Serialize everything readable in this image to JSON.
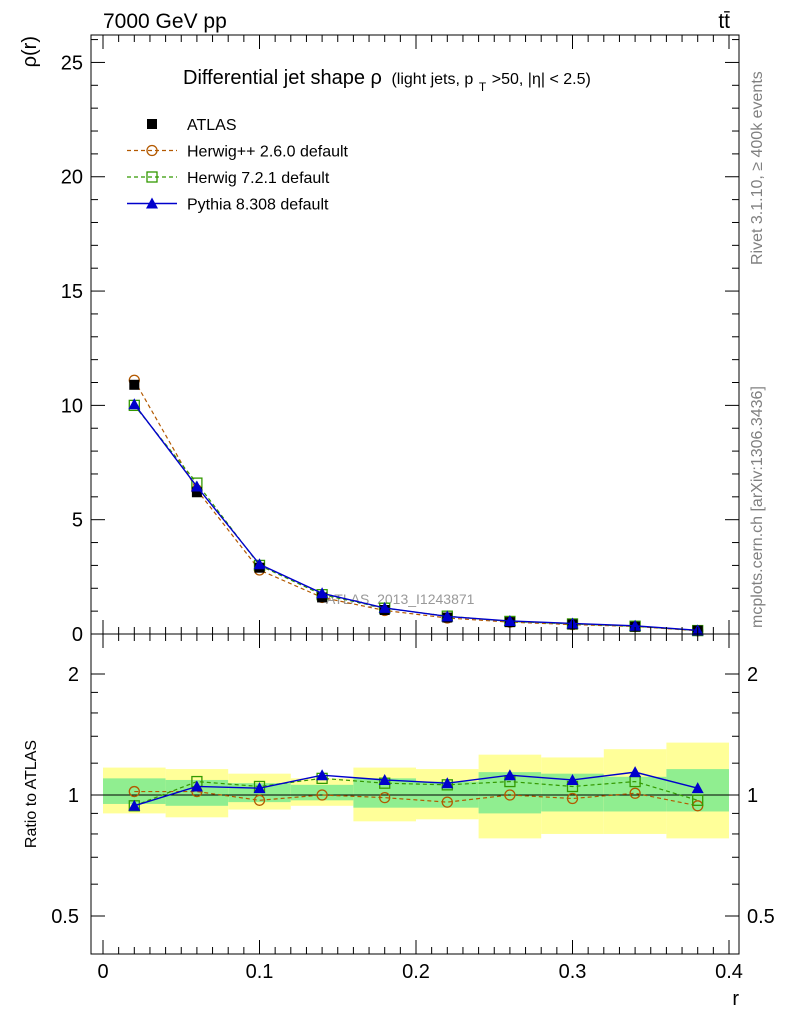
{
  "header": {
    "left": "7000 GeV pp",
    "right": "tt̄"
  },
  "side_labels": {
    "rivet": "Rivet 3.1.10, ≥ 400k events",
    "mcplots": "mcplots.cern.ch [arXiv:1306.3436]"
  },
  "colors": {
    "atlas": "#000000",
    "herwigpp": "#b35900",
    "herwig7": "#339900",
    "pythia": "#0000cc",
    "band_inner": "#90ee90",
    "band_outer": "#ffff99"
  },
  "chart_data": [
    {
      "type": "line",
      "title_main": "Differential jet shape ρ",
      "title_sub": "(light jets, p",
      "title_sub_T": "T",
      "title_sub_rest": ">50, |η| < 2.5)",
      "ylabel": "ρ(r)",
      "xlabel": "",
      "xlim": [
        -0.0,
        0.4
      ],
      "ylim": [
        0,
        26.2
      ],
      "yticks": [
        0,
        5,
        10,
        15,
        20,
        25
      ],
      "ytick_labels": [
        "0",
        "5",
        "10",
        "15",
        "20",
        "25"
      ],
      "grid": false,
      "legend_position": "top-left",
      "watermark": "ATLAS_2013_I1243871",
      "x": [
        0.02,
        0.06,
        0.1,
        0.14,
        0.18,
        0.22,
        0.26,
        0.3,
        0.34,
        0.38
      ],
      "series": [
        {
          "name": "ATLAS",
          "marker": "filled-square",
          "values": [
            10.9,
            6.2,
            2.9,
            1.6,
            1.05,
            0.72,
            0.52,
            0.42,
            0.32,
            0.15
          ]
        },
        {
          "name": "Herwig++ 2.6.0 default",
          "marker": "open-circle",
          "style": "dashed",
          "values": [
            11.1,
            6.3,
            2.8,
            1.6,
            1.03,
            0.7,
            0.52,
            0.41,
            0.33,
            0.14
          ]
        },
        {
          "name": "Herwig 7.2.1 default",
          "marker": "open-square",
          "style": "dashed",
          "values": [
            10.0,
            6.6,
            3.0,
            1.72,
            1.13,
            0.78,
            0.55,
            0.44,
            0.34,
            0.15
          ]
        },
        {
          "name": "Pythia 8.308 default",
          "marker": "filled-triangle",
          "style": "solid",
          "values": [
            10.05,
            6.45,
            3.05,
            1.78,
            1.14,
            0.77,
            0.57,
            0.46,
            0.36,
            0.16
          ]
        }
      ]
    },
    {
      "type": "line",
      "ylabel": "Ratio to ATLAS",
      "xlabel": "r",
      "xlim": [
        0.0,
        0.4
      ],
      "ylim": [
        0.42,
        2.38
      ],
      "log_y": true,
      "yticks": [
        0.5,
        1,
        2
      ],
      "ytick_labels": [
        "0.5",
        "1",
        "2"
      ],
      "xticks": [
        0,
        0.1,
        0.2,
        0.3,
        0.4
      ],
      "xtick_labels": [
        "0",
        "0.1",
        "0.2",
        "0.3",
        "0.4"
      ],
      "grid": false,
      "bins": [
        0.0,
        0.04,
        0.08,
        0.12,
        0.16,
        0.2,
        0.24,
        0.28,
        0.32,
        0.36,
        0.4
      ],
      "band_inner": [
        [
          0.95,
          1.1
        ],
        [
          0.94,
          1.09
        ],
        [
          0.96,
          1.07
        ],
        [
          0.97,
          1.06
        ],
        [
          0.93,
          1.1
        ],
        [
          0.93,
          1.08
        ],
        [
          0.9,
          1.14
        ],
        [
          0.91,
          1.13
        ],
        [
          0.91,
          1.11
        ],
        [
          0.91,
          1.16
        ]
      ],
      "band_outer": [
        [
          0.9,
          1.17
        ],
        [
          0.88,
          1.16
        ],
        [
          0.92,
          1.13
        ],
        [
          0.94,
          1.1
        ],
        [
          0.86,
          1.17
        ],
        [
          0.87,
          1.16
        ],
        [
          0.78,
          1.26
        ],
        [
          0.8,
          1.24
        ],
        [
          0.8,
          1.3
        ],
        [
          0.78,
          1.35
        ]
      ],
      "x": [
        0.02,
        0.06,
        0.1,
        0.14,
        0.18,
        0.22,
        0.26,
        0.3,
        0.34,
        0.38
      ],
      "series": [
        {
          "name": "Herwig++ 2.6.0 default",
          "marker": "open-circle",
          "style": "dashed",
          "values": [
            1.02,
            1.02,
            0.97,
            1.0,
            0.985,
            0.96,
            1.0,
            0.98,
            1.01,
            0.94
          ]
        },
        {
          "name": "Herwig 7.2.1 default",
          "marker": "open-square",
          "style": "dashed",
          "values": [
            0.94,
            1.08,
            1.05,
            1.1,
            1.07,
            1.06,
            1.08,
            1.05,
            1.08,
            0.97
          ]
        },
        {
          "name": "Pythia 8.308 default",
          "marker": "filled-triangle",
          "style": "solid",
          "values": [
            0.94,
            1.05,
            1.04,
            1.12,
            1.09,
            1.07,
            1.12,
            1.09,
            1.14,
            1.04
          ]
        }
      ]
    }
  ]
}
